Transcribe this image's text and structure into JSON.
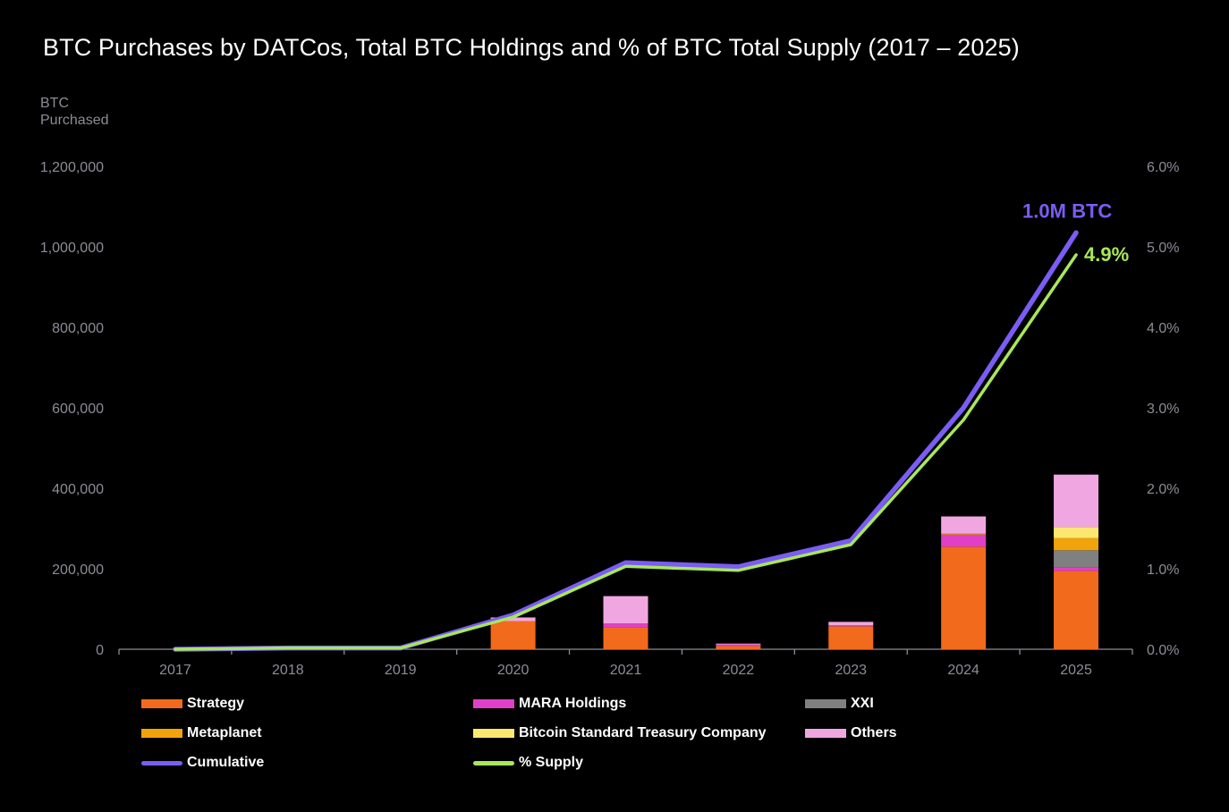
{
  "title": "BTC Purchases by DATCos, Total BTC Holdings and % of BTC Total Supply (2017 – 2025)",
  "chart_data": {
    "type": "bar",
    "title": "BTC Purchases by DATCos, Total BTC Holdings and % of BTC Total Supply (2017 – 2025)",
    "ylabel": [
      "BTC",
      "Purchased"
    ],
    "ylim": [
      0,
      1200000
    ],
    "y2lim": [
      0,
      6.0
    ],
    "yticks": [
      {
        "value": 0,
        "label": "0"
      },
      {
        "value": 200000,
        "label": "200,000"
      },
      {
        "value": 400000,
        "label": "400,000"
      },
      {
        "value": 600000,
        "label": "600,000"
      },
      {
        "value": 800000,
        "label": "800,000"
      },
      {
        "value": 1000000,
        "label": "1,000,000"
      },
      {
        "value": 1200000,
        "label": "1,200,000"
      }
    ],
    "y2ticks": [
      {
        "value": 0,
        "label": "0.0%"
      },
      {
        "value": 1,
        "label": "1.0%"
      },
      {
        "value": 2,
        "label": "2.0%"
      },
      {
        "value": 3,
        "label": "3.0%"
      },
      {
        "value": 4,
        "label": "4.0%"
      },
      {
        "value": 5,
        "label": "5.0%"
      },
      {
        "value": 6,
        "label": "6.0%"
      }
    ],
    "categories": [
      "2017",
      "2018",
      "2019",
      "2020",
      "2021",
      "2022",
      "2023",
      "2024",
      "2025"
    ],
    "bar_series": [
      {
        "name": "Strategy",
        "color": "#f26a1b",
        "values": [
          0,
          0,
          0,
          70000,
          55000,
          8000,
          57000,
          255000,
          195000
        ]
      },
      {
        "name": "MARA Holdings",
        "color": "#e040c8",
        "values": [
          0,
          0,
          0,
          0,
          9000,
          4000,
          3000,
          30000,
          8000
        ]
      },
      {
        "name": "XXI",
        "color": "#808080",
        "values": [
          0,
          0,
          0,
          0,
          0,
          0,
          0,
          0,
          43000
        ]
      },
      {
        "name": "Metaplanet",
        "color": "#f0a30a",
        "values": [
          0,
          0,
          0,
          0,
          0,
          0,
          0,
          2000,
          30000
        ]
      },
      {
        "name": "Bitcoin Standard Treasury Company",
        "color": "#fbe870",
        "values": [
          0,
          0,
          0,
          0,
          0,
          0,
          0,
          0,
          28000
        ]
      },
      {
        "name": "Others",
        "color": "#f0a7e1",
        "values": [
          0,
          0,
          0,
          9000,
          68000,
          2000,
          8000,
          43000,
          130000
        ]
      }
    ],
    "line_series": [
      {
        "name": "Cumulative",
        "color": "#7b5cf5",
        "axis": "left",
        "values": [
          0,
          3000,
          3000,
          85000,
          215000,
          205000,
          270000,
          600000,
          1035000
        ]
      },
      {
        "name": "% Supply",
        "color": "#a8e65c",
        "axis": "right",
        "values": [
          0,
          0.015,
          0.015,
          0.4,
          1.03,
          0.98,
          1.3,
          2.85,
          4.9
        ]
      }
    ],
    "annotations": [
      {
        "text": "1.0M BTC",
        "color": "#7b5cf5",
        "series": "Cumulative"
      },
      {
        "text": "4.9%",
        "color": "#a8e65c",
        "series": "% Supply"
      }
    ]
  },
  "legend": [
    {
      "name": "Strategy",
      "color": "#f26a1b",
      "kind": "bar"
    },
    {
      "name": "MARA Holdings",
      "color": "#e040c8",
      "kind": "bar"
    },
    {
      "name": "XXI",
      "color": "#808080",
      "kind": "bar"
    },
    {
      "name": "Metaplanet",
      "color": "#f0a30a",
      "kind": "bar"
    },
    {
      "name": "Bitcoin Standard Treasury Company",
      "color": "#fbe870",
      "kind": "bar"
    },
    {
      "name": "Others",
      "color": "#f0a7e1",
      "kind": "bar"
    },
    {
      "name": "Cumulative",
      "color": "#7b5cf5",
      "kind": "line"
    },
    {
      "name": "% Supply",
      "color": "#a8e65c",
      "kind": "line"
    }
  ]
}
